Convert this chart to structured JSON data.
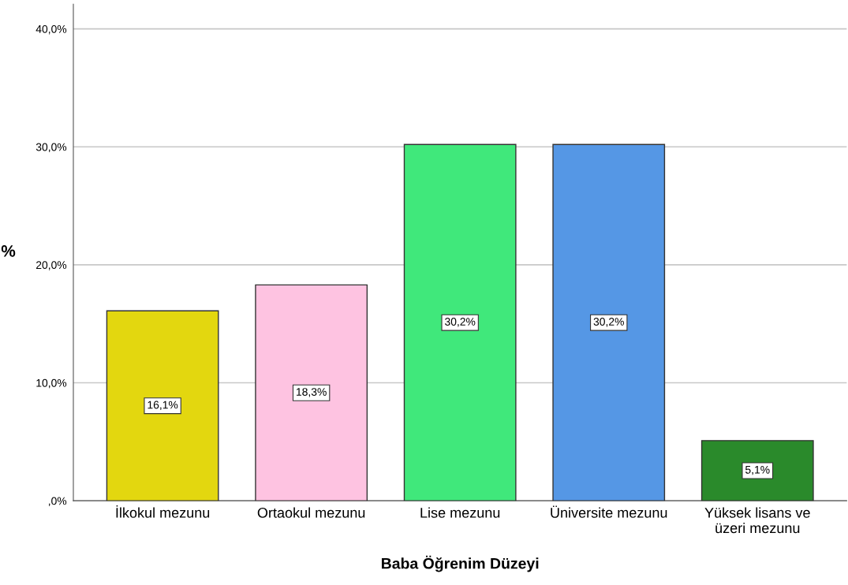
{
  "chart_data": {
    "type": "bar",
    "xlabel": "Baba Öğrenim Düzeyi",
    "ylabel": "%",
    "categories": [
      "İlkokul mezunu",
      "Ortaokul mezunu",
      "Lise mezunu",
      "Üniversite mezunu",
      "Yüksek lisans ve\nüzeri mezunu"
    ],
    "values": [
      16.1,
      18.3,
      30.2,
      30.2,
      5.1
    ],
    "colors": [
      "#e3d70f",
      "#fec3e1",
      "#40e87b",
      "#5597e5",
      "#2a8a2b"
    ],
    "value_labels": [
      "16,1%",
      "18,3%",
      "30,2%",
      "30,2%",
      "5,1%"
    ],
    "ylim": [
      0,
      42.1
    ],
    "yticks": [
      {
        "value": 0,
        "label": ",0%"
      },
      {
        "value": 10,
        "label": "10,0%"
      },
      {
        "value": 20,
        "label": "20,0%"
      },
      {
        "value": 30,
        "label": "30,0%"
      },
      {
        "value": 40,
        "label": "40,0%"
      }
    ],
    "grid": "y",
    "legend": false
  }
}
